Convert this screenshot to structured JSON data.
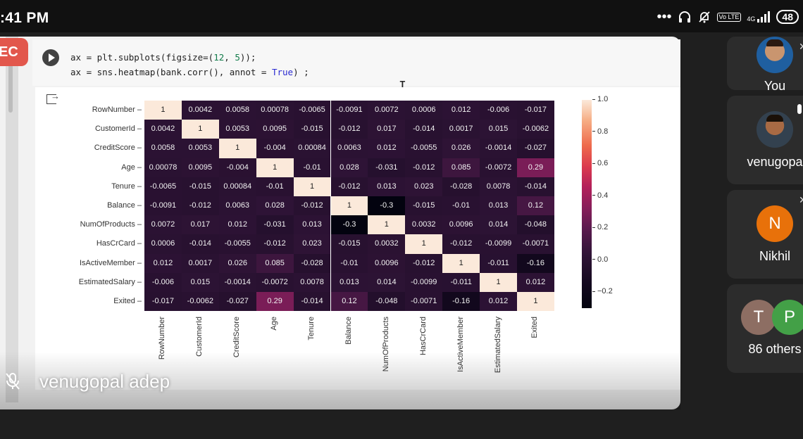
{
  "status_bar": {
    "time": ":41 PM",
    "icons": [
      "more-dots-icon",
      "headset-icon",
      "mute-bell-icon",
      "volte-icon",
      "network-4g-icon",
      "signal-icon"
    ],
    "net_label": "4G",
    "vo_label": "Vo LTE",
    "battery": "48"
  },
  "recording_badge": "EC",
  "code": {
    "line1_a": "ax = plt.subplots(figsize=(",
    "line1_n1": "12",
    "line1_b": ", ",
    "line1_n2": "5",
    "line1_c": "));",
    "line2_a": "ax = sns.heatmap(bank.corr(), annot = ",
    "line2_kw": "True",
    "line2_b": ") ;"
  },
  "chart_data": {
    "type": "heatmap",
    "labels": [
      "RowNumber",
      "CustomerId",
      "CreditScore",
      "Age",
      "Tenure",
      "Balance",
      "NumOfProducts",
      "HasCrCard",
      "IsActiveMember",
      "EstimatedSalary",
      "Exited"
    ],
    "annotations": [
      [
        "1",
        "0.0042",
        "0.0058",
        "0.00078",
        "-0.0065",
        "-0.0091",
        "0.0072",
        "0.0006",
        "0.012",
        "-0.006",
        "-0.017"
      ],
      [
        "0.0042",
        "1",
        "0.0053",
        "0.0095",
        "-0.015",
        "-0.012",
        "0.017",
        "-0.014",
        "0.0017",
        "0.015",
        "-0.0062"
      ],
      [
        "0.0058",
        "0.0053",
        "1",
        "-0.004",
        "0.00084",
        "0.0063",
        "0.012",
        "-0.0055",
        "0.026",
        "-0.0014",
        "-0.027"
      ],
      [
        "0.00078",
        "0.0095",
        "-0.004",
        "1",
        "-0.01",
        "0.028",
        "-0.031",
        "-0.012",
        "0.085",
        "-0.0072",
        "0.29"
      ],
      [
        "-0.0065",
        "-0.015",
        "0.00084",
        "-0.01",
        "1",
        "-0.012",
        "0.013",
        "0.023",
        "-0.028",
        "0.0078",
        "-0.014"
      ],
      [
        "-0.0091",
        "-0.012",
        "0.0063",
        "0.028",
        "-0.012",
        "1",
        "-0.3",
        "-0.015",
        "-0.01",
        "0.013",
        "0.12"
      ],
      [
        "0.0072",
        "0.017",
        "0.012",
        "-0.031",
        "0.013",
        "-0.3",
        "1",
        "0.0032",
        "0.0096",
        "0.014",
        "-0.048"
      ],
      [
        "0.0006",
        "-0.014",
        "-0.0055",
        "-0.012",
        "0.023",
        "-0.015",
        "0.0032",
        "1",
        "-0.012",
        "-0.0099",
        "-0.0071"
      ],
      [
        "0.012",
        "0.0017",
        "0.026",
        "0.085",
        "-0.028",
        "-0.01",
        "0.0096",
        "-0.012",
        "1",
        "-0.011",
        "-0.16"
      ],
      [
        "-0.006",
        "0.015",
        "-0.0014",
        "-0.0072",
        "0.0078",
        "0.013",
        "0.014",
        "-0.0099",
        "-0.011",
        "1",
        "0.012"
      ],
      [
        "-0.017",
        "-0.0062",
        "-0.027",
        "0.29",
        "-0.014",
        "0.12",
        "-0.048",
        "-0.0071",
        "-0.16",
        "0.012",
        "1"
      ]
    ],
    "colorbar_ticks": [
      "1.0",
      "0.8",
      "0.6",
      "0.4",
      "0.2",
      "0.0",
      "−0.2"
    ],
    "colorbar_range": [
      -0.3,
      1.0
    ],
    "colormap": "rocket"
  },
  "presenter": {
    "name": "venugopal adep"
  },
  "participants": [
    {
      "name": "You",
      "kind": "photo"
    },
    {
      "name": "venugopa",
      "kind": "photo"
    },
    {
      "name": "Nikhil",
      "kind": "letter",
      "letter": "N",
      "color": "#e8710a"
    },
    {
      "name": "86 others",
      "kind": "group",
      "letters": [
        "T",
        "P"
      ],
      "colors": [
        "#8d6e63",
        "#43a047"
      ]
    }
  ]
}
